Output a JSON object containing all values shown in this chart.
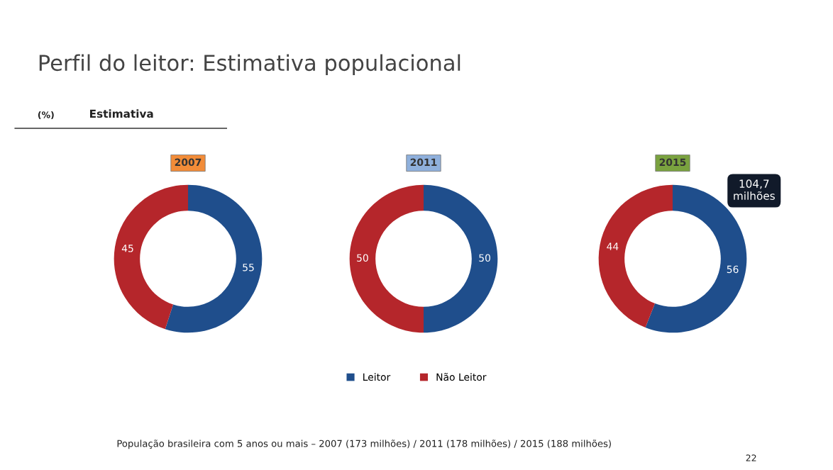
{
  "chart_data": [
    {
      "type": "donut",
      "title": "2007",
      "categories": [
        "Leitor",
        "Não Leitor"
      ],
      "values": [
        55,
        45
      ],
      "colors": [
        "#1f4e8c",
        "#b5262b"
      ],
      "data_labels": true,
      "legend": "bottom",
      "annotations": [
        "Perfil do leitor: Estimativa populacional",
        "(%)",
        "Estimativa",
        "População brasileira com 5 anos ou mais – 2007 (173 milhões) / 2011 (178 milhões) / 2015 (188 milhões)",
        "22"
      ]
    },
    {
      "type": "donut",
      "title": "2011",
      "values": [
        50,
        50
      ],
      "colors": [
        "#1f4e8c",
        "#b5262b"
      ],
      "data_labels": true
    },
    {
      "type": "donut",
      "title": "2015",
      "values": [
        56,
        44
      ],
      "colors": [
        "#1f4e8c",
        "#b5262b"
      ],
      "data_labels": true,
      "annotations": [
        "104,7\nmilhões"
      ]
    }
  ]
}
